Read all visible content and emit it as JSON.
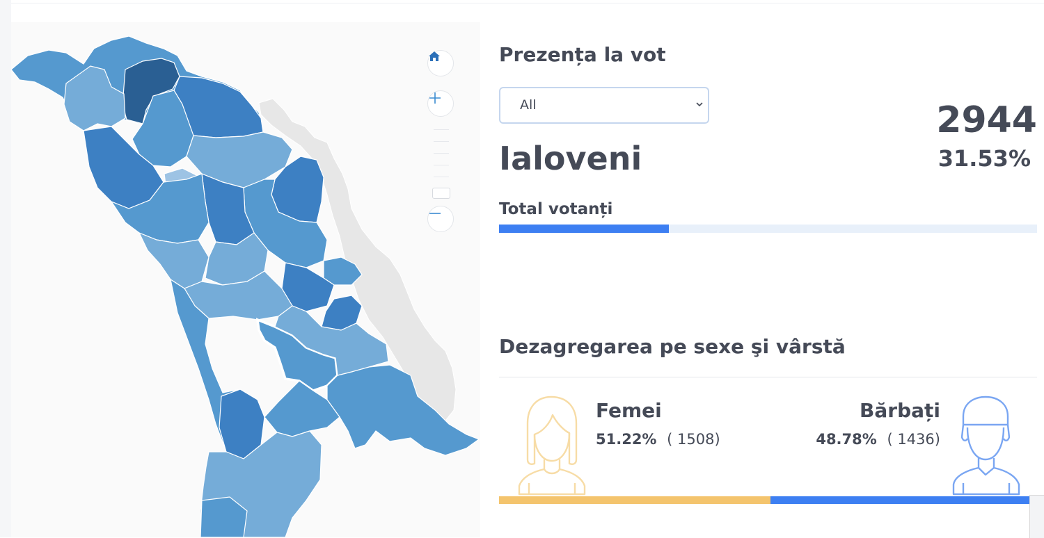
{
  "map": {
    "home_icon": "home-icon",
    "zoom_in_icon": "plus-icon",
    "zoom_out_icon": "minus-icon",
    "colors": {
      "darkest": "#2a5f93",
      "dark": "#3d80c3",
      "medium": "#5599cf",
      "light": "#75acd8",
      "lightest": "#9dc3e4",
      "neighbor": "#e7e7e7",
      "selected_outline": "#ffffff"
    }
  },
  "turnout": {
    "title": "Prezența la vot",
    "filter": {
      "selected": "All"
    },
    "region": "Ialoveni",
    "count": "2944",
    "percent": "31.53%",
    "total_label": "Total votanți",
    "total_fraction": 0.3153,
    "bar_color": "#3d7ff2"
  },
  "breakdown": {
    "title": "Dezagregarea pe sexe şi vârstă",
    "female": {
      "label": "Femei",
      "percent": "51.22%",
      "count": "( 1508)",
      "fraction": 0.5122,
      "color": "#f4c46d",
      "icon": "woman-avatar-icon"
    },
    "male": {
      "label": "Bărbați",
      "percent": "48.78%",
      "count": "( 1436)",
      "fraction": 0.4878,
      "color": "#3d7ff2",
      "icon": "man-avatar-icon"
    }
  }
}
